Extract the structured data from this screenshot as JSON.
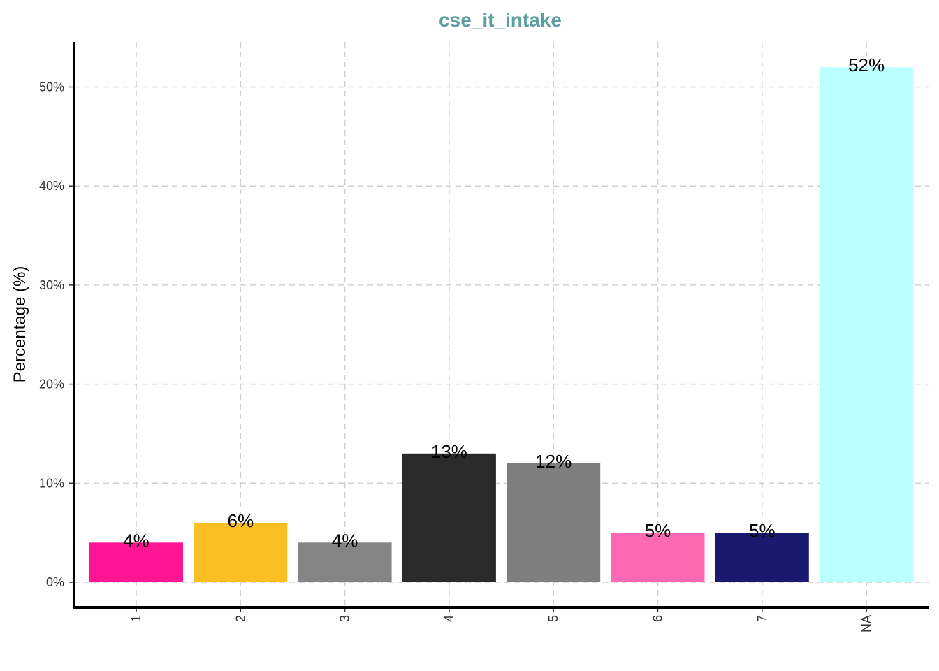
{
  "chart_data": {
    "type": "bar",
    "title": "cse_it_intake",
    "title_color": "#5f9ea0",
    "xlabel": "",
    "ylabel": "Percentage (%)",
    "categories": [
      "1",
      "2",
      "3",
      "4",
      "5",
      "6",
      "7",
      "NA"
    ],
    "values": [
      4,
      6,
      4,
      13,
      12,
      5,
      5,
      52
    ],
    "data_labels": [
      "4%",
      "6%",
      "4%",
      "13%",
      "12%",
      "5%",
      "5%",
      "52%"
    ],
    "colors": [
      "#ff1493",
      "#fbbf24",
      "#848484",
      "#2a2a2a",
      "#7f7f7f",
      "#ff69b4",
      "#191970",
      "#bbffff"
    ],
    "ylim": [
      0,
      54.5
    ],
    "yticks": [
      0,
      10,
      20,
      30,
      40,
      50
    ],
    "ytick_labels": [
      "0%",
      "10%",
      "20%",
      "30%",
      "40%",
      "50%"
    ],
    "grid": true,
    "legend": "none"
  }
}
